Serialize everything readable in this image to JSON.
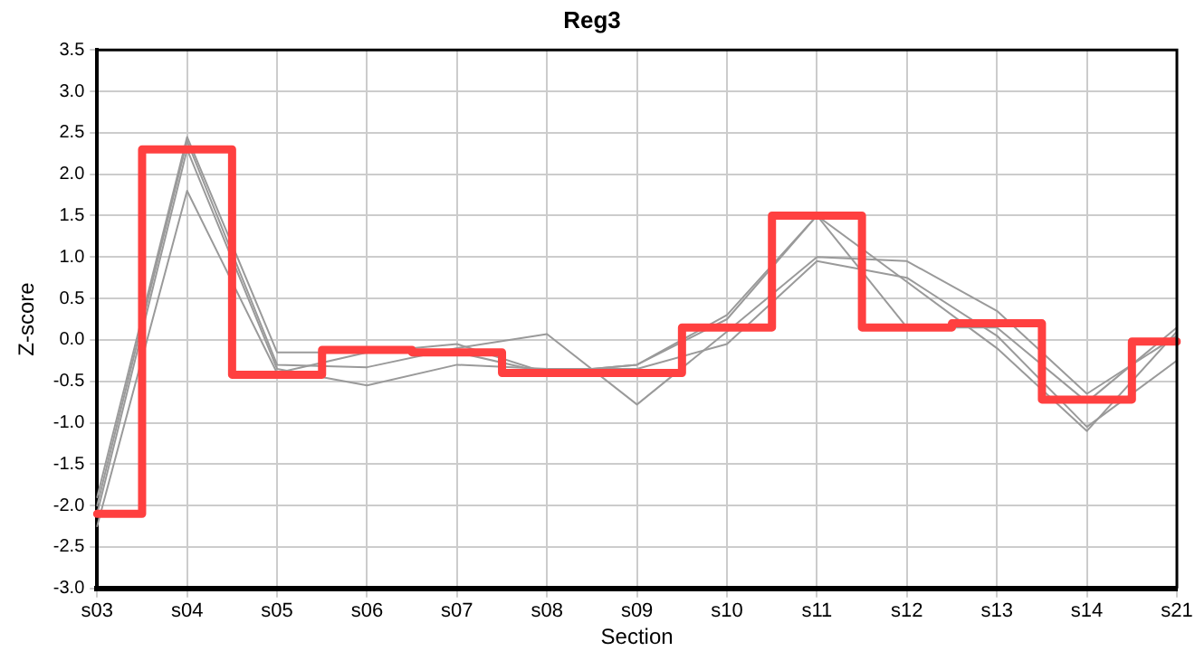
{
  "chart_data": {
    "type": "line",
    "title": "Reg3",
    "xlabel": "Section",
    "ylabel": "Z-score",
    "categories": [
      "s03",
      "s04",
      "s05",
      "s06",
      "s07",
      "s08",
      "s09",
      "s10",
      "s11",
      "s12",
      "s13",
      "s14",
      "s21"
    ],
    "series": [
      {
        "color": "#9a9a9a",
        "values": [
          -1.9,
          2.45,
          -0.15,
          -0.15,
          -0.05,
          -0.4,
          -0.3,
          0.25,
          1.5,
          0.15,
          0.15,
          -0.75,
          0.15
        ]
      },
      {
        "color": "#9a9a9a",
        "values": [
          -2.0,
          2.4,
          -0.3,
          -0.33,
          -0.1,
          0.07,
          -0.78,
          0.1,
          1.0,
          0.95,
          0.35,
          -0.65,
          0.05
        ]
      },
      {
        "color": "#9a9a9a",
        "values": [
          -2.1,
          2.3,
          -0.35,
          -0.55,
          -0.3,
          -0.35,
          -0.35,
          -0.05,
          0.95,
          0.75,
          0.05,
          -1.05,
          -0.25
        ]
      },
      {
        "color": "#9a9a9a",
        "values": [
          -2.25,
          1.8,
          -0.4,
          -0.15,
          -0.15,
          -0.4,
          -0.3,
          0.3,
          1.5,
          0.7,
          -0.1,
          -1.1,
          0.1
        ]
      },
      {
        "type": "step",
        "color": "#ff4040",
        "values": [
          -2.1,
          2.3,
          -0.42,
          -0.12,
          -0.15,
          -0.4,
          -0.4,
          0.15,
          1.5,
          0.15,
          0.2,
          -0.72,
          -0.02
        ]
      }
    ],
    "ylim": [
      -3.0,
      3.5
    ],
    "yticks": [
      {
        "value": -3,
        "label": "-3.0"
      },
      -2.5,
      {
        "value": -2,
        "label": "-2.0"
      },
      -1.5,
      {
        "value": -1,
        "label": "-1.0"
      },
      -0.5,
      {
        "value": 0,
        "label": "0.0"
      },
      0.5,
      {
        "value": 1,
        "label": "1.0"
      },
      1.5,
      {
        "value": 2,
        "label": "2.0"
      },
      2.5,
      {
        "value": 3,
        "label": "3.0"
      },
      3.5
    ],
    "grid": true,
    "legend": false,
    "marker": "none",
    "line_style": "solid"
  }
}
